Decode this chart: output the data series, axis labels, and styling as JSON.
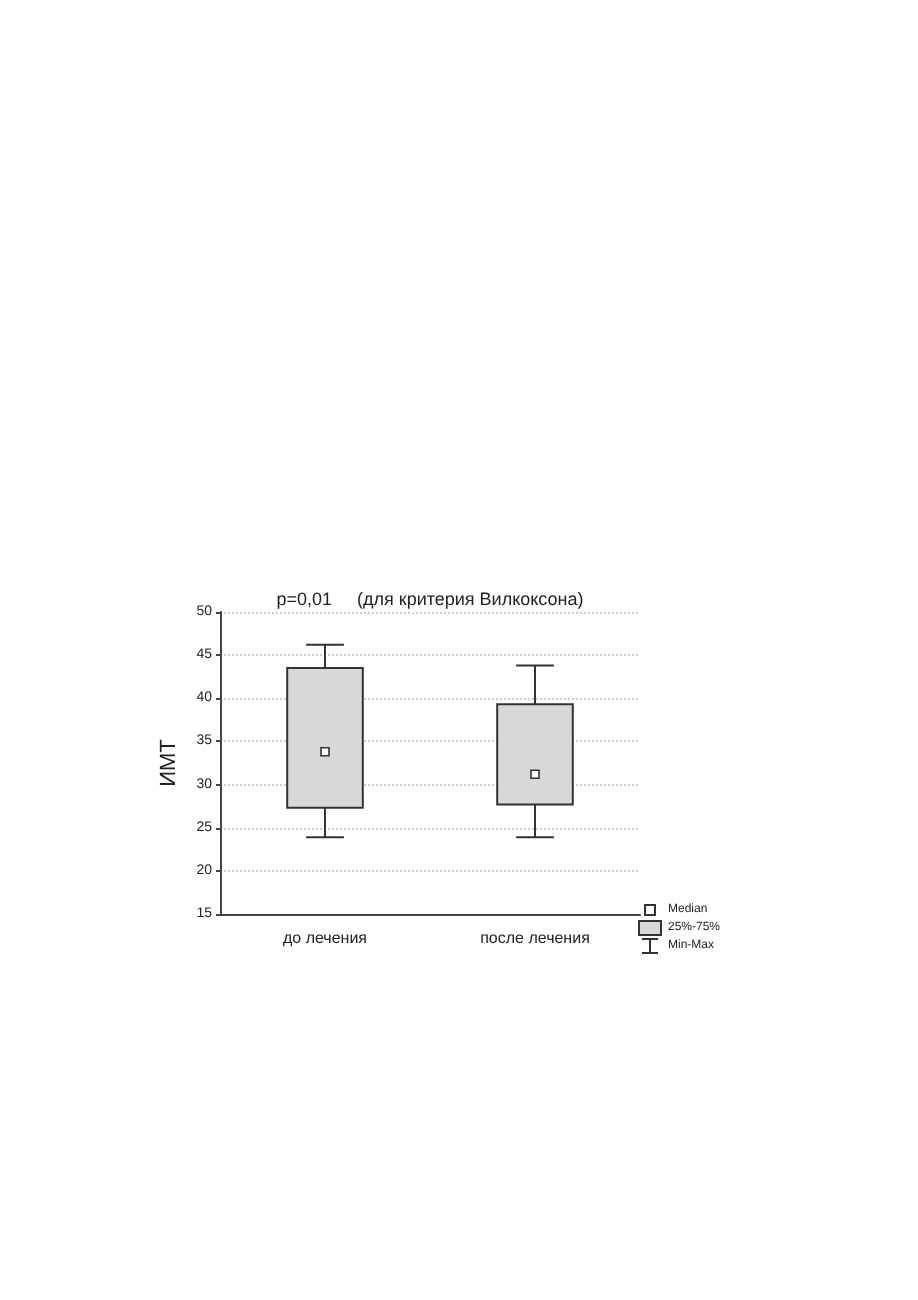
{
  "chart_data": {
    "type": "box",
    "title": "p=0,01     (для критерия Вилкоксона)",
    "ylabel": "ИМТ",
    "categories": [
      "до лечения",
      "после лечения"
    ],
    "boxes": [
      {
        "low": 23.9,
        "q1": 27.3,
        "median": 33.8,
        "q3": 43.5,
        "high": 46.2
      },
      {
        "low": 23.9,
        "q1": 27.7,
        "median": 31.2,
        "q3": 39.3,
        "high": 43.8
      }
    ],
    "color": "#d8d8d8",
    "ylim": [
      15,
      50
    ],
    "yticks": [
      15,
      20,
      25,
      30,
      35,
      40,
      45,
      50
    ],
    "grid": "y",
    "marker": "square",
    "annotations": [
      "Median",
      "25%-75%",
      "Min-Max"
    ]
  }
}
